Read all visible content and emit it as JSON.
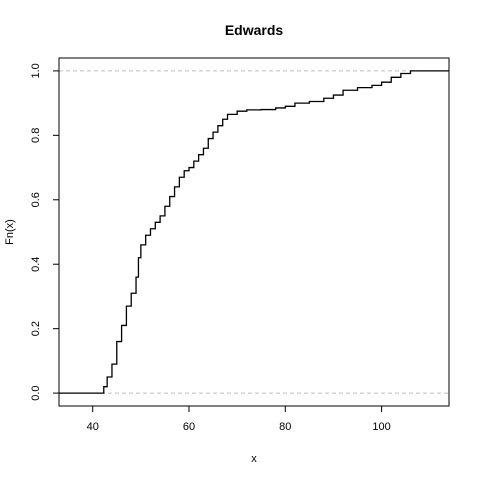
{
  "chart_data": {
    "type": "line",
    "subtype": "ecdf-step",
    "title": "Edwards",
    "xlabel": "x",
    "ylabel": "Fn(x)",
    "xlim": [
      33,
      114
    ],
    "ylim": [
      -0.04,
      1.04
    ],
    "xticks": [
      40,
      60,
      80,
      100
    ],
    "yticks": [
      0.0,
      0.2,
      0.4,
      0.6,
      0.8,
      1.0
    ],
    "xtick_labels": [
      "40",
      "60",
      "80",
      "100"
    ],
    "ytick_labels": [
      "0.0",
      "0.2",
      "0.4",
      "0.6",
      "0.8",
      "1.0"
    ],
    "reference_lines_y": [
      0,
      1
    ],
    "reference_line_color": "#bebebe",
    "line_color": "#000000",
    "series": [
      {
        "x": [
          33,
          41.5,
          42.3,
          43.0,
          44.0,
          45.0,
          46.0,
          47.0,
          48.0,
          49.0,
          49.5,
          50.0,
          51.0,
          52.0,
          53.0,
          54.0,
          55.0,
          56.0,
          57.0,
          58.0,
          59.0,
          60.0,
          61.0,
          62.0,
          63.0,
          64.0,
          65.0,
          66.0,
          67.0,
          68.0,
          70.0,
          72.0,
          75.0,
          78.0,
          80.0,
          82.0,
          85.0,
          88.0,
          90.0,
          92.0,
          95.0,
          98.0,
          100.0,
          102.0,
          104.0,
          106.0,
          114
        ],
        "y": [
          0.0,
          0.0,
          0.02,
          0.05,
          0.09,
          0.16,
          0.21,
          0.27,
          0.31,
          0.36,
          0.42,
          0.46,
          0.49,
          0.51,
          0.53,
          0.55,
          0.58,
          0.61,
          0.64,
          0.67,
          0.69,
          0.7,
          0.72,
          0.74,
          0.76,
          0.79,
          0.81,
          0.83,
          0.85,
          0.865,
          0.875,
          0.879,
          0.88,
          0.885,
          0.89,
          0.9,
          0.905,
          0.915,
          0.925,
          0.94,
          0.948,
          0.955,
          0.965,
          0.98,
          0.992,
          1.0,
          1.0
        ]
      }
    ]
  }
}
